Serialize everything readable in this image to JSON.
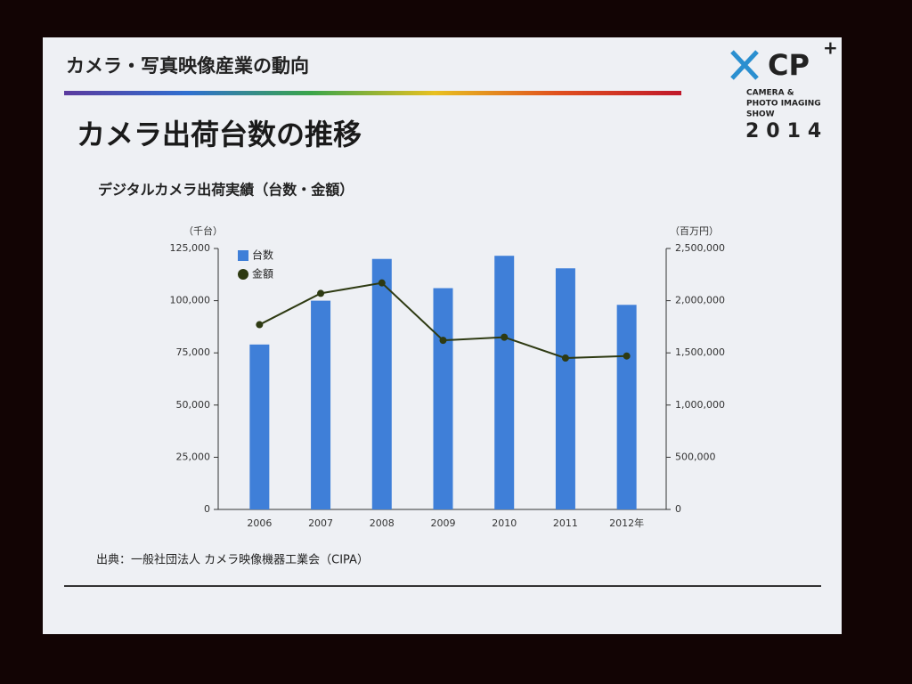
{
  "slide": {
    "header": "カメラ・写真映像産業の動向",
    "heading": "カメラ出荷台数の推移",
    "source": "出典：一般社団法人 カメラ映像機器工業会（CIPA）",
    "logo": {
      "mark": "CP",
      "plus": "+",
      "lines": [
        "CAMERA &",
        "PHOTO IMAGING",
        "SHOW"
      ],
      "year": "2014"
    }
  },
  "chart_data": {
    "type": "bar",
    "title": "デジタルカメラ出荷実績（台数・金額）",
    "y_label": "（千台）",
    "y2_label": "（百万円）",
    "categories": [
      "2006",
      "2007",
      "2008",
      "2009",
      "2010",
      "2011",
      "2012年"
    ],
    "series": [
      {
        "name": "台数",
        "color": "#3f7fd8",
        "values": [
          79000,
          100000,
          120000,
          106000,
          121500,
          115500,
          98000
        ]
      },
      {
        "name": "金額",
        "type": "line",
        "axis": "y2",
        "color": "#2e3a12",
        "values": [
          1770000,
          2070000,
          2170000,
          1620000,
          1650000,
          1450000,
          1470000
        ]
      }
    ],
    "ylim": [
      0,
      125000
    ],
    "yticks": [
      0,
      {
        "value": 25000,
        "label": "25,000"
      },
      {
        "value": 50000,
        "label": "50,000"
      },
      {
        "value": 75000,
        "label": "75,000"
      },
      {
        "value": 100000,
        "label": "100,000"
      },
      {
        "value": 125000,
        "label": "125,000"
      }
    ],
    "y2lim": [
      0,
      2500000
    ],
    "y2ticks": [
      0,
      {
        "value": 500000,
        "label": "500,000"
      },
      {
        "value": 1000000,
        "label": "1,000,000"
      },
      {
        "value": 1500000,
        "label": "1,500,000"
      },
      {
        "value": 2000000,
        "label": "2,000,000"
      },
      {
        "value": 2500000,
        "label": "2,500,000"
      }
    ],
    "legend": "upper left"
  }
}
